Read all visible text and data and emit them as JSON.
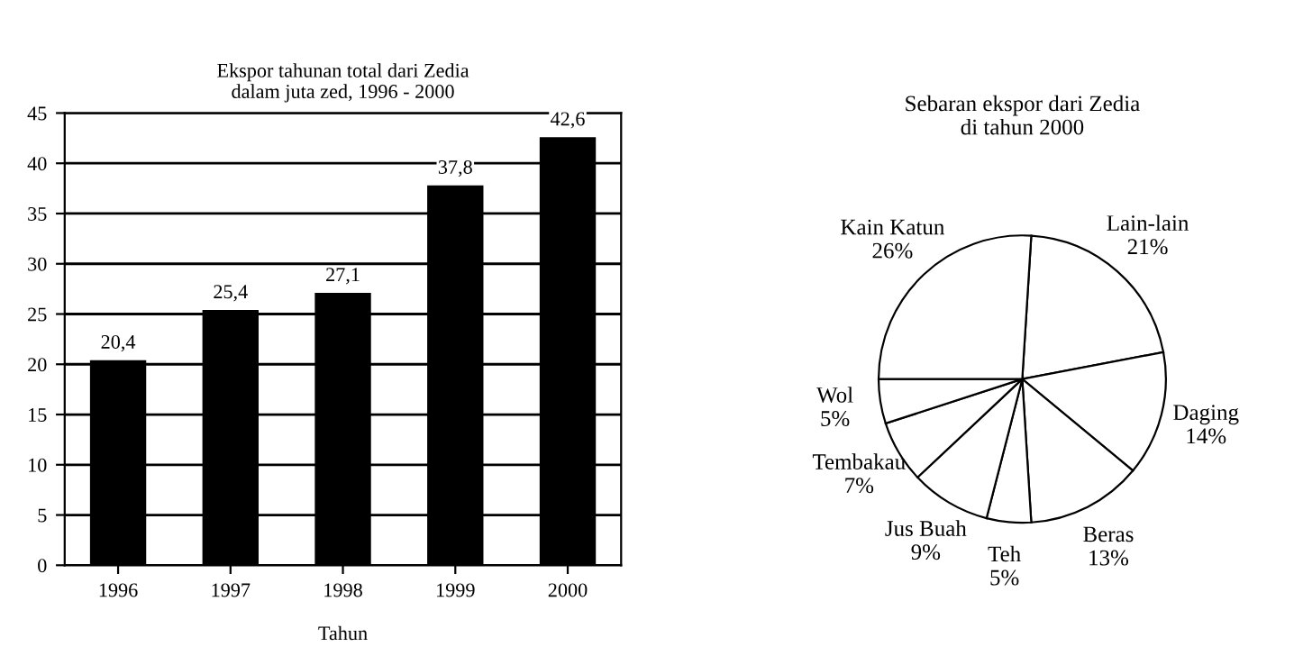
{
  "chart_data": [
    {
      "type": "bar",
      "title": "Ekspor tahunan total dari Zedia\ndalam juta zed, 1996 - 2000",
      "xlabel": "Tahun",
      "categories": [
        "1996",
        "1997",
        "1998",
        "1999",
        "2000"
      ],
      "values": [
        20.4,
        25.4,
        27.1,
        37.8,
        42.6
      ],
      "value_labels": [
        "20,4",
        "25,4",
        "27,1",
        "37,8",
        "42,6"
      ],
      "color": "#000000",
      "ylim": [
        0,
        45
      ],
      "yticks": [
        0,
        5,
        10,
        15,
        20,
        25,
        30,
        35,
        40,
        45
      ],
      "grid": "y"
    },
    {
      "type": "pie",
      "title": "Sebaran ekspor dari Zedia\ndi tahun 2000",
      "categories": [
        "Lain-lain",
        "Daging",
        "Beras",
        "Teh",
        "Jus Buah",
        "Tembakau",
        "Wol",
        "Kain Katun"
      ],
      "values": [
        21,
        14,
        13,
        5,
        9,
        7,
        5,
        26
      ],
      "value_labels": [
        "21%",
        "14%",
        "13%",
        "5%",
        "9%",
        "7%",
        "5%",
        "26%"
      ],
      "colors": [
        "#ffffff",
        "#ffffff",
        "#ffffff",
        "#ffffff",
        "#ffffff",
        "#ffffff",
        "#ffffff",
        "#ffffff"
      ]
    }
  ]
}
